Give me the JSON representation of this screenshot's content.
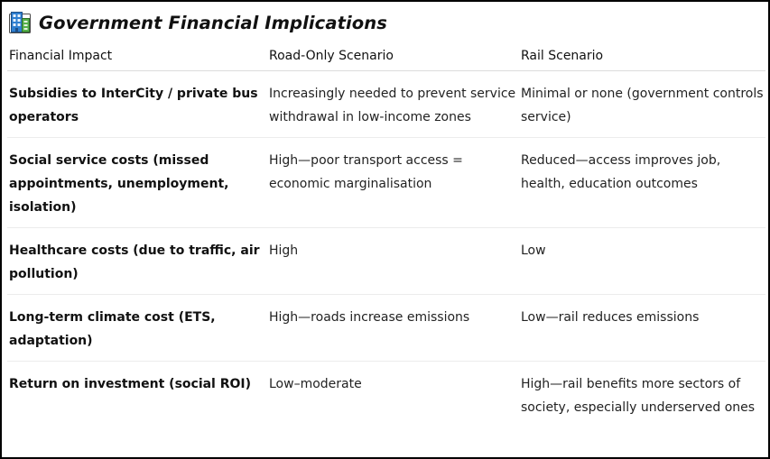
{
  "section": {
    "icon": "office-building-icon",
    "title": "Government Financial Implications"
  },
  "table": {
    "headers": [
      "Financial Impact",
      "Road-Only Scenario",
      "Rail Scenario"
    ],
    "rows": [
      {
        "impact": "Subsidies to InterCity / private bus operators",
        "road": "Increasingly needed to prevent service withdrawal in low-income zones",
        "rail": "Minimal or none (government controls service)"
      },
      {
        "impact": "Social service costs (missed appointments, unemployment, isolation)",
        "road": "High—poor transport access = economic marginalisation",
        "rail": "Reduced—access improves job, health, education outcomes"
      },
      {
        "impact": "Healthcare costs (due to traffic, air pollution)",
        "road": "High",
        "rail": "Low"
      },
      {
        "impact": "Long-term climate cost (ETS, adaptation)",
        "road": "High—roads increase emissions",
        "rail": "Low—rail reduces emissions"
      },
      {
        "impact": "Return on investment (social ROI)",
        "road": "Low–moderate",
        "rail": "High—rail benefits more sectors of society, especially underserved ones"
      }
    ]
  }
}
